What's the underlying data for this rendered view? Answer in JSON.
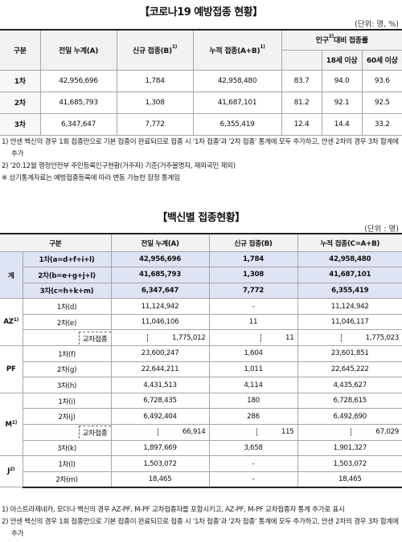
{
  "header": {
    "title": "【코로나19 예방접종 현황】",
    "unit": "(단위: 명, %)"
  },
  "table1": {
    "columns": [
      {
        "text": "구분"
      },
      {
        "text": "전일 누계(A)"
      },
      {
        "text": "신규 접종(B)",
        "sup": "1)"
      },
      {
        "text": "누적 접종(A+B)",
        "sup": "1)"
      }
    ],
    "rate_header": {
      "text": "인구",
      "sup": "2)",
      "after": "대비 접종률"
    },
    "rate_subcolumns": [
      "18세 이상",
      "60세 이상"
    ],
    "rows": [
      {
        "label": "1차",
        "values": [
          "42,956,696",
          "1,784",
          "42,958,480",
          "83.7",
          "94.0",
          "93.6"
        ]
      },
      {
        "label": "2차",
        "values": [
          "41,685,793",
          "1,308",
          "41,687,101",
          "81.2",
          "92.1",
          "92.5"
        ]
      },
      {
        "label": "3차",
        "values": [
          "6,347,647",
          "7,772",
          "6,355,419",
          "12.4",
          "14.4",
          "33.2"
        ]
      }
    ]
  },
  "notes1": [
    "1) 얀센 백신의 경우 1회 접종만으로 기본 접종이 완료되므로 접종 시 '1차 접종'과 '2차 접종' 통계에 모두 추가하고, 얀센 2차의 경우 3차 합계에 추가",
    "2) '20.12월 행정안전부 주민등록인구현황(거주자) 기준(거주불명자, 재외국민 제외)",
    "※ 상기통계자료는 예방접종등록에 따라 변동 가능한 잠정 통계임"
  ],
  "vaccine_title": "【백신별 접종현황】",
  "vaccine_unit": "(단위 : 명)",
  "table2": {
    "columns": [
      "구분",
      "전일 누계(A)",
      "신규 접종(B)",
      "누적 접종(C=A+B)"
    ],
    "groups": [
      {
        "label": "계",
        "rows": [
          {
            "label": "1차(a=d+f+i+l)",
            "values": [
              "42,956,696",
              "1,784",
              "42,958,480"
            ]
          },
          {
            "label": "2차(b=e+g+j+l)",
            "values": [
              "41,685,793",
              "1,308",
              "41,687,101"
            ]
          },
          {
            "label": "3차(c=h+k+m)",
            "values": [
              "6,347,647",
              "7,772",
              "6,355,419"
            ]
          }
        ]
      },
      {
        "label": "AZ",
        "sup": "1)",
        "rows": [
          {
            "label": "1차(d)",
            "values": [
              "11,124,942",
              "-",
              "11,124,942"
            ]
          },
          {
            "label": "2차(e)",
            "values": [
              "11,046,106",
              "11",
              "11,046,117"
            ],
            "cross": {
              "label": "교차접종",
              "values": [
                "1,775,012",
                "11",
                "1,775,023"
              ]
            }
          }
        ]
      },
      {
        "label": "PF",
        "rows": [
          {
            "label": "1차(f)",
            "values": [
              "23,600,247",
              "1,604",
              "23,601,851"
            ]
          },
          {
            "label": "2차(g)",
            "values": [
              "22,644,211",
              "1,011",
              "22,645,222"
            ]
          },
          {
            "label": "3차(h)",
            "values": [
              "4,431,513",
              "4,114",
              "4,435,627"
            ]
          }
        ]
      },
      {
        "label": "M",
        "sup": "1)",
        "rows": [
          {
            "label": "1차(i)",
            "values": [
              "6,728,435",
              "180",
              "6,728,615"
            ]
          },
          {
            "label": "2차(j)",
            "values": [
              "6,492,404",
              "286",
              "6,492,690"
            ],
            "cross": {
              "label": "교차접종",
              "values": [
                "66,914",
                "115",
                "67,029"
              ]
            }
          },
          {
            "label": "3차(k)",
            "values": [
              "1,897,669",
              "3,658",
              "1,901,327"
            ]
          }
        ]
      },
      {
        "label": "J",
        "sup": "2)",
        "rows": [
          {
            "label": "1차(l)",
            "values": [
              "1,503,072",
              "-",
              "1,503,072"
            ]
          },
          {
            "label": "2차(m)",
            "values": [
              "18,465",
              "-",
              "18,465"
            ]
          }
        ]
      }
    ]
  },
  "notes2": [
    "1) 아스트라제네카, 모더나 백신의 경우 AZ-PF, M-PF 교차접종자를 포함시키고, AZ-PF, M-PF 교차접종자 통계 추가로 표시",
    "2) 얀센 백신의 경우 1회 접종만으로 기본 접종이 완료되므로 접종 시 '1차 접종'과 '2차 접종' 통계에 모두 추가하고, 얀센 2차의 경우 3차 합계에 추가"
  ]
}
